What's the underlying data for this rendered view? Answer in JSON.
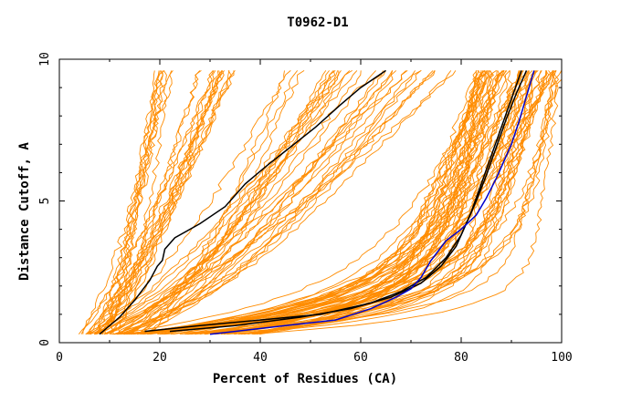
{
  "chart_data": {
    "type": "line",
    "title": "T0962-D1",
    "xlabel": "Percent of Residues (CA)",
    "ylabel": "Distance Cutoff, A",
    "xlim": [
      0,
      100
    ],
    "ylim": [
      0,
      10
    ],
    "x_ticks": [
      0,
      20,
      40,
      60,
      80,
      100
    ],
    "y_ticks": [
      0,
      5,
      10
    ],
    "x_tick_labels": [
      "0",
      "20",
      "40",
      "60",
      "80",
      "100"
    ],
    "y_tick_labels": [
      "0",
      "5",
      "10"
    ],
    "grid": false,
    "legend": "none",
    "colors": {
      "background_lines": "#ff8c00",
      "highlight_black": "#000000",
      "highlight_blue": "#0000cc",
      "frame": "#000000"
    },
    "series": [
      {
        "group": "highlight",
        "color": "#000000",
        "x": [
          8,
          12,
          15,
          18,
          19.5,
          20.5,
          21,
          23,
          28,
          33,
          37,
          41,
          46,
          51,
          56,
          60,
          65
        ],
        "y": [
          0.3,
          0.9,
          1.5,
          2.2,
          2.7,
          2.9,
          3.3,
          3.7,
          4.2,
          4.8,
          5.6,
          6.2,
          6.9,
          7.6,
          8.4,
          9.0,
          9.6
        ]
      },
      {
        "group": "highlight",
        "color": "#000000",
        "x": [
          17,
          28,
          40,
          52,
          62,
          68,
          73,
          77,
          80,
          82,
          84,
          86,
          88,
          90,
          92
        ],
        "y": [
          0.4,
          0.6,
          0.8,
          1.0,
          1.4,
          1.8,
          2.3,
          3.0,
          3.8,
          4.6,
          5.6,
          6.6,
          7.6,
          8.6,
          9.6
        ]
      },
      {
        "group": "highlight",
        "color": "#000000",
        "x": [
          22,
          35,
          48,
          58,
          66,
          72,
          76,
          79,
          81,
          83,
          85,
          87,
          89,
          91,
          93
        ],
        "y": [
          0.4,
          0.6,
          0.9,
          1.2,
          1.6,
          2.1,
          2.7,
          3.4,
          4.2,
          5.0,
          5.9,
          6.9,
          7.9,
          8.8,
          9.6
        ]
      },
      {
        "group": "highlight",
        "color": "#0000cc",
        "x": [
          30,
          45,
          55,
          62,
          67,
          70,
          72,
          74,
          77,
          80,
          83,
          85,
          87,
          88,
          90,
          91.5,
          92.5,
          93.5,
          94.5
        ],
        "y": [
          0.3,
          0.6,
          0.8,
          1.2,
          1.6,
          1.9,
          2.3,
          2.9,
          3.6,
          4.0,
          4.5,
          5.1,
          5.8,
          6.2,
          7.0,
          7.8,
          8.4,
          9.0,
          9.6
        ]
      }
    ],
    "background_series_count": 120
  }
}
